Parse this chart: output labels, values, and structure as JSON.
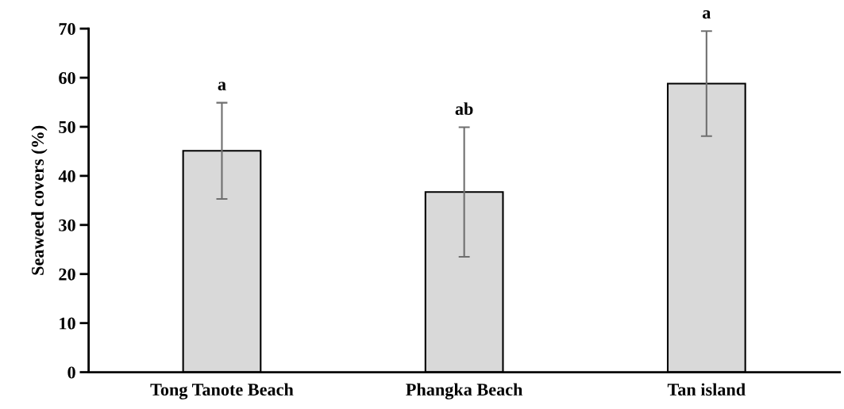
{
  "chart_data": {
    "type": "bar",
    "ylabel": "Seaweed covers (%)",
    "categories": [
      "Tong Tanote Beach",
      "Phangka Beach",
      "Tan island"
    ],
    "values": [
      45.1,
      36.7,
      58.8
    ],
    "errors": [
      9.8,
      13.2,
      10.7
    ],
    "color": "#d9d9d9",
    "ylim": [
      0,
      70
    ],
    "yticks": [
      0,
      10,
      20,
      30,
      40,
      50,
      60,
      70
    ],
    "grid": false,
    "annotations": [
      {
        "text": "a",
        "x": "Tong Tanote Beach",
        "y": 54.9
      },
      {
        "text": "ab",
        "x": "Phangka Beach",
        "y": 49.9
      },
      {
        "text": "a",
        "x": "Tan island",
        "y": 69.5
      }
    ]
  }
}
